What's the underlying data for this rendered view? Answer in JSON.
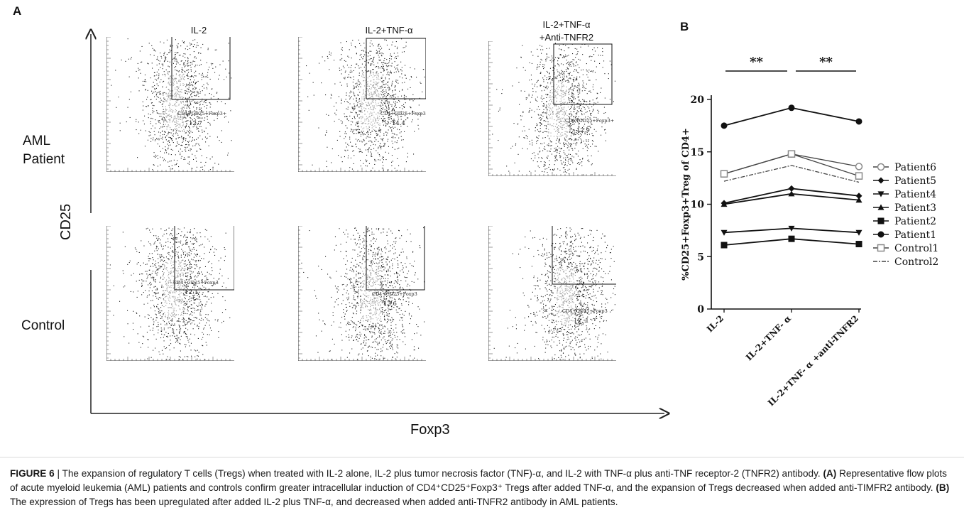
{
  "panel_a": {
    "letter": "A",
    "columns": [
      "IL-2",
      "IL-2+TNF-α",
      "IL-2+TNF-α\n+Anti-TNFR2"
    ],
    "rows": [
      "AML\nPatient",
      "Control"
    ],
    "y_axis_label": "CD25",
    "x_axis_label": "Foxp3",
    "plots": [
      {
        "gate_label": "CD4+CD25+Foxp3+",
        "value": "12.7"
      },
      {
        "gate_label": "CD4+CD25+Foxp3+",
        "value": "14.4"
      },
      {
        "gate_label": "CD4+CD25+Foxp3+",
        "value": "12.9"
      },
      {
        "gate_label": "CD4+CD25+Foxp3",
        "value": "12.1"
      },
      {
        "gate_label": "CD4+CD25+Foxp3",
        "value": "13.6"
      },
      {
        "gate_label": "CD4+CD25+Foxp3",
        "value": "12. 1"
      }
    ]
  },
  "panel_b": {
    "letter": "B"
  },
  "chart_data": {
    "type": "line",
    "title": "",
    "xlabel": "",
    "ylabel": "%CD25+Foxp3+Treg of CD4+",
    "categories": [
      "IL-2",
      "IL-2+TNF- α",
      "IL-2+TNF- α +anti-TNFR2"
    ],
    "ylim": [
      0,
      20
    ],
    "yticks": [
      0,
      5,
      10,
      15,
      20
    ],
    "grid": false,
    "legend_position": "right",
    "significance": [
      "**",
      "**"
    ],
    "series": [
      {
        "name": "Patient6",
        "marker": "circle-open",
        "values": [
          12.9,
          14.8,
          13.6
        ]
      },
      {
        "name": "Patient5",
        "marker": "diamond",
        "values": [
          10.1,
          11.5,
          10.8
        ]
      },
      {
        "name": "Patient4",
        "marker": "triangle-down",
        "values": [
          7.3,
          7.7,
          7.3
        ]
      },
      {
        "name": "Patient3",
        "marker": "triangle-up",
        "values": [
          10.0,
          11.0,
          10.4
        ]
      },
      {
        "name": "Patient2",
        "marker": "square",
        "values": [
          6.1,
          6.7,
          6.2
        ]
      },
      {
        "name": "Patient1",
        "marker": "circle",
        "values": [
          17.5,
          19.2,
          17.9
        ]
      },
      {
        "name": "Control1",
        "marker": "square-open",
        "values": [
          12.9,
          14.8,
          12.7
        ]
      },
      {
        "name": "Control2",
        "marker": "dash-dot",
        "values": [
          12.2,
          13.7,
          12.1
        ]
      }
    ]
  },
  "caption": {
    "figure_label": "FIGURE 6",
    "intro": " | The expansion of regulatory T cells (Tregs) when treated with IL-2 alone, IL-2 plus tumor necrosis factor (TNF)-α, and IL-2 with TNF-α plus anti-TNF receptor-2 (TNFR2) antibody. ",
    "a_label": "(A)",
    "a_text": " Representative flow plots of acute myeloid leukemia (AML) patients and controls confirm greater intracellular induction of CD4⁺CD25⁺Foxp3⁺ Tregs after added TNF-α, and the expansion of Tregs decreased when added anti-TIMFR2 antibody. ",
    "b_label": "(B)",
    "b_text": " The expression of Tregs has been upregulated after added IL-2 plus TNF-α, and decreased when added anti-TNFR2 antibody in AML patients."
  }
}
